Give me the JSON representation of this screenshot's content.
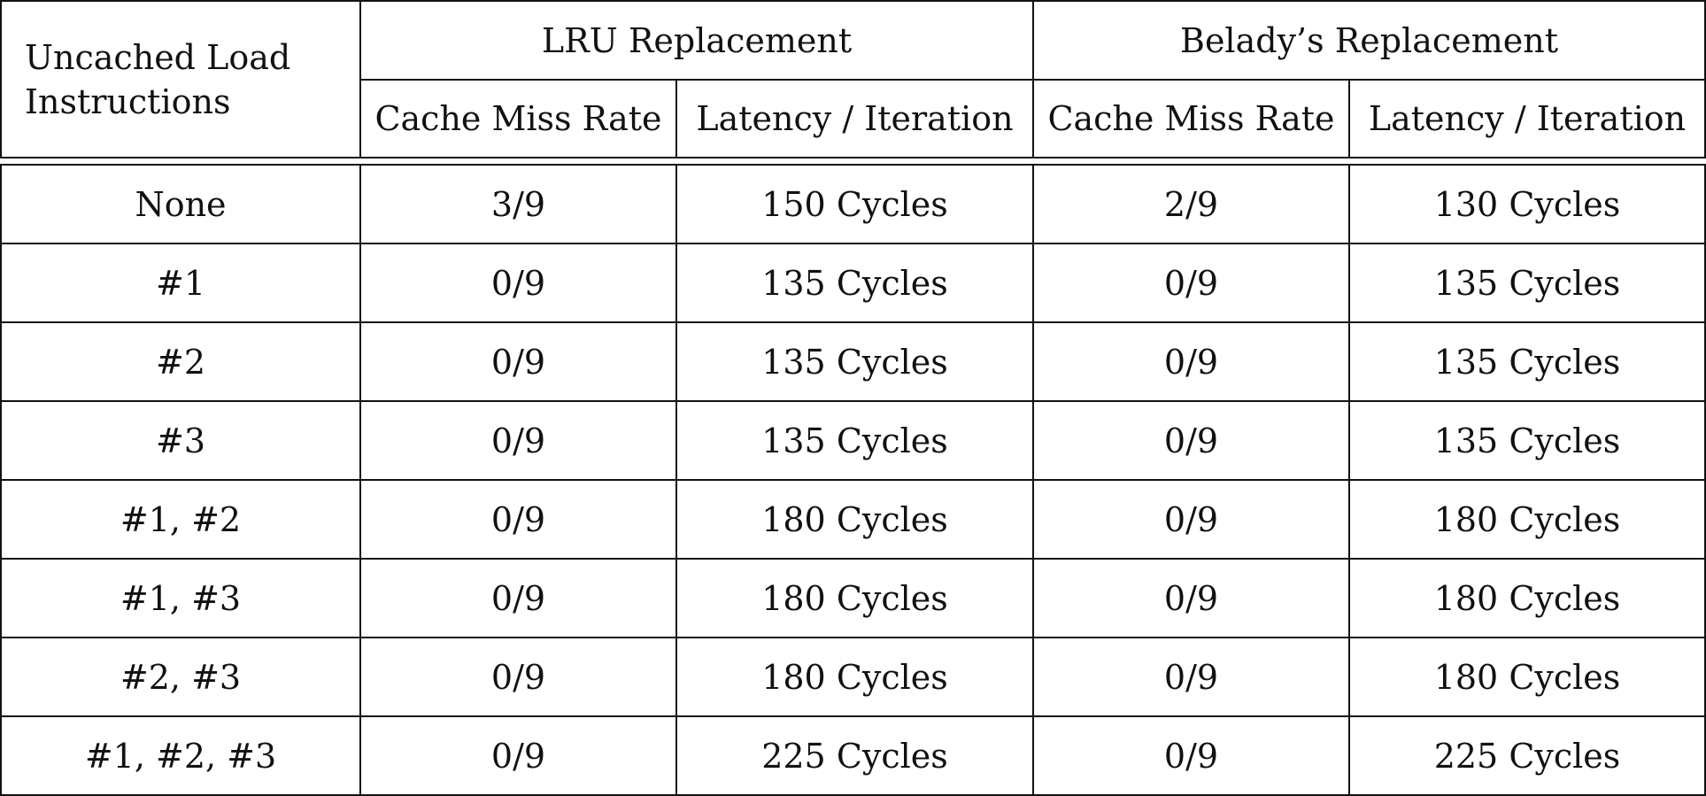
{
  "table": {
    "header": {
      "row_label": "Uncached Load Instructions",
      "groups": [
        {
          "label": "LRU Replacement",
          "columns": [
            "Cache Miss Rate",
            "Latency / Iteration"
          ]
        },
        {
          "label": "Belady’s Replacement",
          "columns": [
            "Cache Miss Rate",
            "Latency / Iteration"
          ]
        }
      ]
    },
    "rows": [
      {
        "label": "None",
        "lru_miss": "3/9",
        "lru_latency": "150 Cycles",
        "belady_miss": "2/9",
        "belady_latency": "130 Cycles"
      },
      {
        "label": "#1",
        "lru_miss": "0/9",
        "lru_latency": "135 Cycles",
        "belady_miss": "0/9",
        "belady_latency": "135 Cycles"
      },
      {
        "label": "#2",
        "lru_miss": "0/9",
        "lru_latency": "135 Cycles",
        "belady_miss": "0/9",
        "belady_latency": "135 Cycles"
      },
      {
        "label": "#3",
        "lru_miss": "0/9",
        "lru_latency": "135 Cycles",
        "belady_miss": "0/9",
        "belady_latency": "135 Cycles"
      },
      {
        "label": "#1, #2",
        "lru_miss": "0/9",
        "lru_latency": "180 Cycles",
        "belady_miss": "0/9",
        "belady_latency": "180 Cycles"
      },
      {
        "label": "#1, #3",
        "lru_miss": "0/9",
        "lru_latency": "180 Cycles",
        "belady_miss": "0/9",
        "belady_latency": "180 Cycles"
      },
      {
        "label": "#2, #3",
        "lru_miss": "0/9",
        "lru_latency": "180 Cycles",
        "belady_miss": "0/9",
        "belady_latency": "180 Cycles"
      },
      {
        "label": "#1, #2, #3",
        "lru_miss": "0/9",
        "lru_latency": "225 Cycles",
        "belady_miss": "0/9",
        "belady_latency": "225 Cycles"
      }
    ]
  }
}
